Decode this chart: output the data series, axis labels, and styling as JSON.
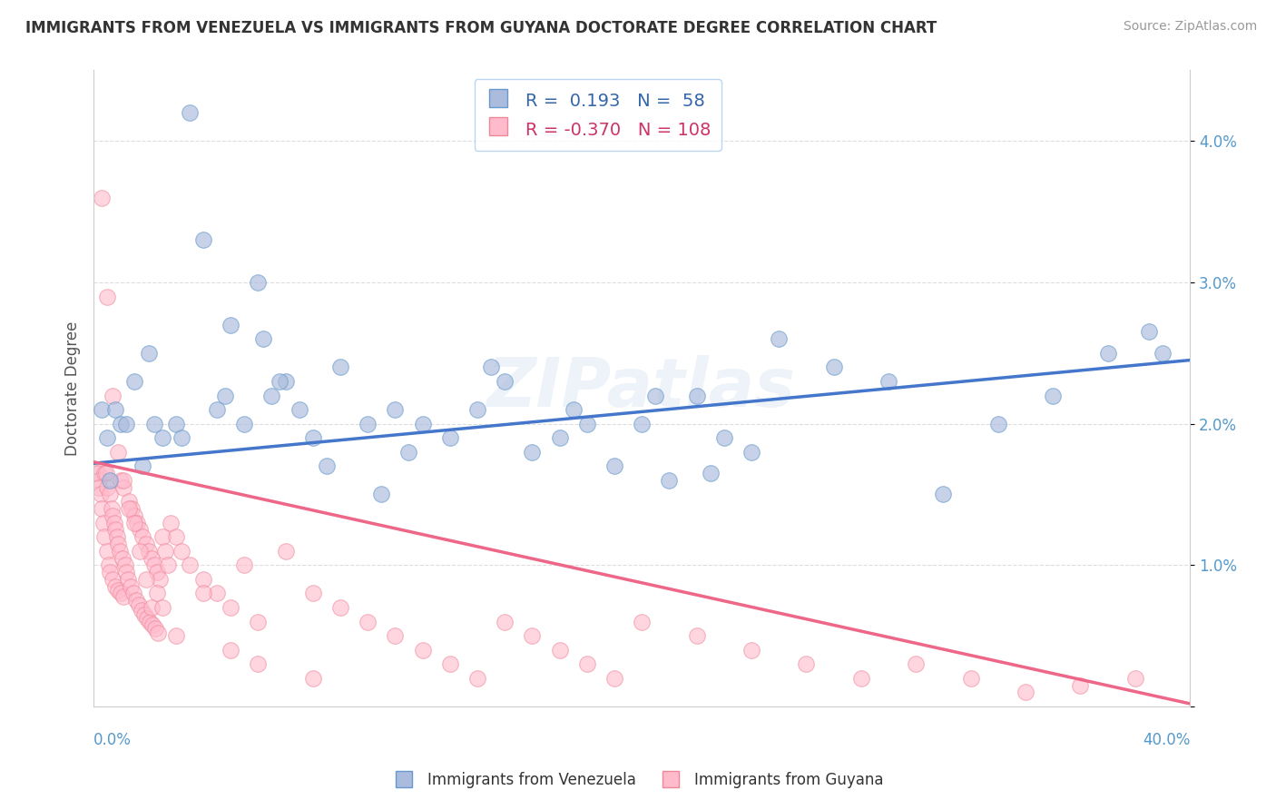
{
  "title": "IMMIGRANTS FROM VENEZUELA VS IMMIGRANTS FROM GUYANA DOCTORATE DEGREE CORRELATION CHART",
  "source": "Source: ZipAtlas.com",
  "ylabel": "Doctorate Degree",
  "xmin": 0.0,
  "xmax": 40.0,
  "ymin": 0.0,
  "ymax": 4.5,
  "yticks": [
    0.0,
    1.0,
    2.0,
    3.0,
    4.0
  ],
  "ytick_labels": [
    "",
    "1.0%",
    "2.0%",
    "3.0%",
    "4.0%"
  ],
  "legend1_r": "0.193",
  "legend1_n": "58",
  "legend2_r": "-0.370",
  "legend2_n": "108",
  "color_blue_fill": "#AABBDD",
  "color_blue_edge": "#6699CC",
  "color_blue_line": "#4477CC",
  "color_pink_fill": "#FFBBCC",
  "color_pink_edge": "#EE8899",
  "color_pink_line": "#EE6688",
  "blue_line_x0": 0.0,
  "blue_line_y0": 1.72,
  "blue_line_x1": 40.0,
  "blue_line_y1": 2.45,
  "pink_line_x0": 0.0,
  "pink_line_y0": 1.73,
  "pink_line_x1": 40.0,
  "pink_line_y1": 0.02,
  "blue_x": [
    0.3,
    0.5,
    0.8,
    1.5,
    2.0,
    2.5,
    3.0,
    3.5,
    4.0,
    4.5,
    5.0,
    5.5,
    6.0,
    6.5,
    7.0,
    7.5,
    8.0,
    9.0,
    10.0,
    11.0,
    12.0,
    13.0,
    14.0,
    15.0,
    16.0,
    17.0,
    18.0,
    19.0,
    20.0,
    21.0,
    22.0,
    23.0,
    24.0,
    25.0,
    27.0,
    29.0,
    31.0,
    33.0,
    35.0,
    37.0,
    39.0,
    1.0,
    1.8,
    3.2,
    4.8,
    6.8,
    8.5,
    11.5,
    14.5,
    17.5,
    20.5,
    0.6,
    1.2,
    2.2,
    6.2,
    10.5,
    38.5,
    22.5
  ],
  "blue_y": [
    2.1,
    1.9,
    2.1,
    2.3,
    2.5,
    1.9,
    2.0,
    4.2,
    3.3,
    2.1,
    2.7,
    2.0,
    3.0,
    2.2,
    2.3,
    2.1,
    1.9,
    2.4,
    2.0,
    2.1,
    2.0,
    1.9,
    2.1,
    2.3,
    1.8,
    1.9,
    2.0,
    1.7,
    2.0,
    1.6,
    2.2,
    1.9,
    1.8,
    2.6,
    2.4,
    2.3,
    1.5,
    2.0,
    2.2,
    2.5,
    2.5,
    2.0,
    1.7,
    1.9,
    2.2,
    2.3,
    1.7,
    1.8,
    2.4,
    2.1,
    2.2,
    1.6,
    2.0,
    2.0,
    2.6,
    1.5,
    2.65,
    1.65
  ],
  "pink_x": [
    0.1,
    0.15,
    0.2,
    0.2,
    0.25,
    0.3,
    0.35,
    0.4,
    0.4,
    0.45,
    0.5,
    0.5,
    0.55,
    0.6,
    0.6,
    0.65,
    0.7,
    0.7,
    0.75,
    0.8,
    0.8,
    0.85,
    0.9,
    0.9,
    0.95,
    1.0,
    1.0,
    1.05,
    1.1,
    1.1,
    1.15,
    1.2,
    1.25,
    1.3,
    1.35,
    1.4,
    1.45,
    1.5,
    1.55,
    1.6,
    1.65,
    1.7,
    1.75,
    1.8,
    1.85,
    1.9,
    1.95,
    2.0,
    2.05,
    2.1,
    2.15,
    2.2,
    2.25,
    2.3,
    2.35,
    2.4,
    2.5,
    2.6,
    2.7,
    2.8,
    3.0,
    3.2,
    3.5,
    4.0,
    4.5,
    5.0,
    5.5,
    6.0,
    7.0,
    8.0,
    9.0,
    10.0,
    11.0,
    12.0,
    13.0,
    14.0,
    15.0,
    16.0,
    17.0,
    18.0,
    19.0,
    20.0,
    22.0,
    24.0,
    26.0,
    28.0,
    30.0,
    32.0,
    34.0,
    36.0,
    38.0,
    0.3,
    0.5,
    0.7,
    0.9,
    1.1,
    1.3,
    1.5,
    1.7,
    1.9,
    2.1,
    2.3,
    2.5,
    3.0,
    4.0,
    5.0,
    6.0,
    8.0
  ],
  "pink_y": [
    1.65,
    1.65,
    1.6,
    1.55,
    1.5,
    1.4,
    1.3,
    1.65,
    1.2,
    1.65,
    1.55,
    1.1,
    1.0,
    1.5,
    0.95,
    1.4,
    1.35,
    0.9,
    1.3,
    1.25,
    0.85,
    1.2,
    1.15,
    0.82,
    1.1,
    1.6,
    0.8,
    1.05,
    1.55,
    0.78,
    1.0,
    0.95,
    0.9,
    1.45,
    0.85,
    1.4,
    0.8,
    1.35,
    0.75,
    1.3,
    0.72,
    1.25,
    0.68,
    1.2,
    0.65,
    1.15,
    0.62,
    1.1,
    0.6,
    1.05,
    0.58,
    1.0,
    0.55,
    0.95,
    0.52,
    0.9,
    1.2,
    1.1,
    1.0,
    1.3,
    1.2,
    1.1,
    1.0,
    0.9,
    0.8,
    0.7,
    1.0,
    0.6,
    1.1,
    0.8,
    0.7,
    0.6,
    0.5,
    0.4,
    0.3,
    0.2,
    0.6,
    0.5,
    0.4,
    0.3,
    0.2,
    0.6,
    0.5,
    0.4,
    0.3,
    0.2,
    0.3,
    0.2,
    0.1,
    0.15,
    0.2,
    3.6,
    2.9,
    2.2,
    1.8,
    1.6,
    1.4,
    1.3,
    1.1,
    0.9,
    0.7,
    0.8,
    0.7,
    0.5,
    0.8,
    0.4,
    0.3,
    0.2
  ]
}
